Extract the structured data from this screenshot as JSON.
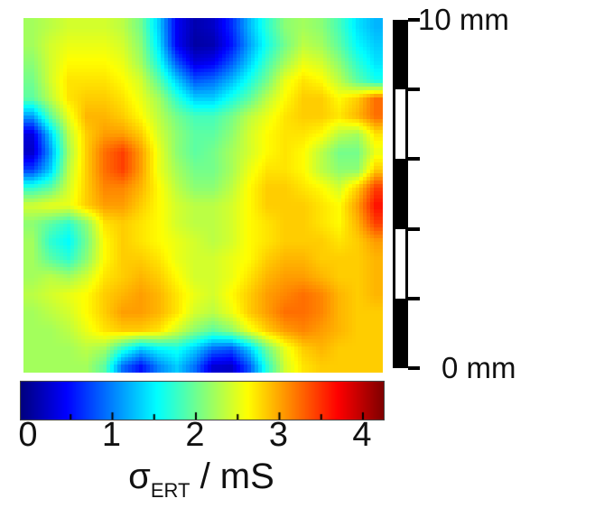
{
  "figure": {
    "background_color": "#ffffff",
    "text_color": "#111111",
    "scalebar": {
      "top_label": "10 mm",
      "bottom_label": "0 mm",
      "length_mm": 10,
      "segment_count": 5,
      "segment_mm": 2,
      "pattern": [
        "black",
        "white",
        "black",
        "white",
        "black"
      ],
      "color": "#000000"
    },
    "colorbar": {
      "tick_labels": [
        "0",
        "1",
        "2",
        "3",
        "4"
      ],
      "title_sigma": "σ",
      "title_subscript": "ERT",
      "title_unit": " / mS"
    }
  },
  "chart_data": {
    "type": "heatmap",
    "title": "",
    "value_label": "σ_ERT / mS",
    "colormap": "jet",
    "value_range": [
      0,
      4.3
    ],
    "colorbar_tick_values": [
      0,
      1,
      2,
      3,
      4
    ],
    "colorbar_minor_tick_values": [
      0.5,
      1.5,
      2.5,
      3.5
    ],
    "x_extent_mm": [
      0,
      10
    ],
    "y_extent_mm": [
      0,
      10
    ],
    "grid_rows": 20,
    "grid_cols": 20,
    "values_unit": "mS",
    "values": [
      [
        2.3,
        2.4,
        2.5,
        2.5,
        2.5,
        2.4,
        2.1,
        1.4,
        0.5,
        0.2,
        0.3,
        0.7,
        1.3,
        1.8,
        2.2,
        2.3,
        2.2,
        1.9,
        1.5,
        1.3
      ],
      [
        2.3,
        2.5,
        2.6,
        2.6,
        2.6,
        2.5,
        2.2,
        1.5,
        0.5,
        0.15,
        0.2,
        0.6,
        1.2,
        1.7,
        2.1,
        2.4,
        2.3,
        2.0,
        1.6,
        1.4
      ],
      [
        2.2,
        2.5,
        2.7,
        2.7,
        2.7,
        2.6,
        2.3,
        1.7,
        0.9,
        0.4,
        0.5,
        0.9,
        1.4,
        1.9,
        2.3,
        2.6,
        2.5,
        2.2,
        1.8,
        1.5
      ],
      [
        2.1,
        2.5,
        2.8,
        2.8,
        2.8,
        2.7,
        2.5,
        2.0,
        1.4,
        0.9,
        1.0,
        1.3,
        1.7,
        2.1,
        2.6,
        2.8,
        2.7,
        2.4,
        2.0,
        1.7
      ],
      [
        2.0,
        2.4,
        2.8,
        2.9,
        2.9,
        2.8,
        2.6,
        2.3,
        1.8,
        1.4,
        1.4,
        1.7,
        2.0,
        2.4,
        2.7,
        2.9,
        2.9,
        2.7,
        2.9,
        3.3
      ],
      [
        1.2,
        2.0,
        2.6,
        3.0,
        3.0,
        2.9,
        2.7,
        2.4,
        2.1,
        1.9,
        1.9,
        2.1,
        2.4,
        2.6,
        2.8,
        2.9,
        2.9,
        2.8,
        3.0,
        3.3
      ],
      [
        0.4,
        1.4,
        2.4,
        2.9,
        3.1,
        3.1,
        2.9,
        2.5,
        2.2,
        2.0,
        2.0,
        2.2,
        2.5,
        2.7,
        2.8,
        2.8,
        2.7,
        2.4,
        2.3,
        2.8
      ],
      [
        0.3,
        1.2,
        2.3,
        2.9,
        3.3,
        3.5,
        3.1,
        2.6,
        2.2,
        2.0,
        2.1,
        2.3,
        2.5,
        2.7,
        2.8,
        2.7,
        2.4,
        2.1,
        2.1,
        2.6
      ],
      [
        0.8,
        1.4,
        2.4,
        2.9,
        3.3,
        3.5,
        3.1,
        2.6,
        2.3,
        2.1,
        2.1,
        2.3,
        2.6,
        2.8,
        2.8,
        2.7,
        2.4,
        2.2,
        2.2,
        2.9
      ],
      [
        1.8,
        2.0,
        2.5,
        2.9,
        3.2,
        3.2,
        3.0,
        2.7,
        2.4,
        2.2,
        2.2,
        2.4,
        2.7,
        2.9,
        2.9,
        2.8,
        2.7,
        2.5,
        2.9,
        3.5
      ],
      [
        2.5,
        2.6,
        2.6,
        2.9,
        3.1,
        3.1,
        2.9,
        2.7,
        2.5,
        2.4,
        2.4,
        2.5,
        2.7,
        2.9,
        2.9,
        2.9,
        2.8,
        2.7,
        3.1,
        3.7
      ],
      [
        2.2,
        2.0,
        1.8,
        2.2,
        2.8,
        2.9,
        2.8,
        2.7,
        2.5,
        2.4,
        2.4,
        2.5,
        2.7,
        2.8,
        2.9,
        2.9,
        2.8,
        2.7,
        3.0,
        3.5
      ],
      [
        2.3,
        1.8,
        1.6,
        2.1,
        2.7,
        2.9,
        2.8,
        2.7,
        2.6,
        2.5,
        2.4,
        2.5,
        2.7,
        2.8,
        2.9,
        2.9,
        2.9,
        2.8,
        2.9,
        3.1
      ],
      [
        2.3,
        2.0,
        1.8,
        2.2,
        2.7,
        2.9,
        2.9,
        2.8,
        2.6,
        2.5,
        2.5,
        2.6,
        2.7,
        2.9,
        3.0,
        3.0,
        2.9,
        2.9,
        2.9,
        3.0
      ],
      [
        2.3,
        2.4,
        2.3,
        2.5,
        2.8,
        2.9,
        3.0,
        2.9,
        2.7,
        2.5,
        2.5,
        2.6,
        2.8,
        3.0,
        3.1,
        3.1,
        3.0,
        2.9,
        2.9,
        3.0
      ],
      [
        2.4,
        2.5,
        2.6,
        2.7,
        2.9,
        3.0,
        3.1,
        3.0,
        2.8,
        2.6,
        2.5,
        2.7,
        2.9,
        3.1,
        3.2,
        3.3,
        3.2,
        3.0,
        2.9,
        3.0
      ],
      [
        2.3,
        2.4,
        2.5,
        2.7,
        2.9,
        3.1,
        3.1,
        3.0,
        2.8,
        2.5,
        2.4,
        2.6,
        2.9,
        3.1,
        3.3,
        3.3,
        3.2,
        3.0,
        2.9,
        2.9
      ],
      [
        2.3,
        2.3,
        2.4,
        2.6,
        2.8,
        2.9,
        2.9,
        2.8,
        2.5,
        2.2,
        2.0,
        2.2,
        2.6,
        2.9,
        3.1,
        3.2,
        3.1,
        3.0,
        2.9,
        2.9
      ],
      [
        2.3,
        2.3,
        2.3,
        2.4,
        2.3,
        1.8,
        1.4,
        1.6,
        1.7,
        1.4,
        1.0,
        0.9,
        1.4,
        2.1,
        2.6,
        2.9,
        3.0,
        2.9,
        2.9,
        2.9
      ],
      [
        2.3,
        2.3,
        2.3,
        2.3,
        2.0,
        1.0,
        0.6,
        1.1,
        1.4,
        1.0,
        0.35,
        0.3,
        0.9,
        1.8,
        2.5,
        2.8,
        2.9,
        2.9,
        2.9,
        2.9
      ]
    ]
  }
}
